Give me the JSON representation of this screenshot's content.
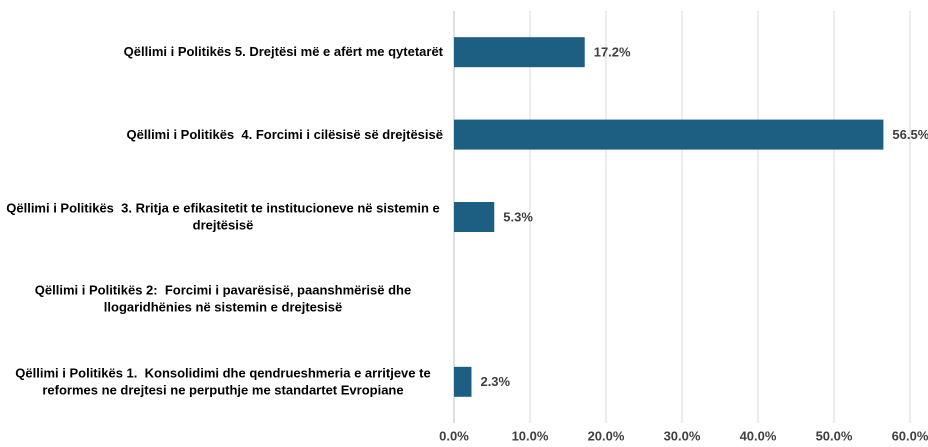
{
  "chart_data": {
    "type": "hbar",
    "categories": [
      "Qëllimi i Politikës 5. Drejtësi më e afërt me qytetarët",
      "Qëllimi i Politikës  4. Forcimi i cilësisë së drejtësisë",
      "Qëllimi i Politikës  3. Rritja e efikasitetit te institucioneve në sistemin e drejtësisë",
      "Qëllimi i Politikës 2:  Forcimi i pavarësisë, paanshmërisë dhe llogaridhënies në sistemin e drejtesisë",
      "Qëllimi i Politikës 1.  Konsolidimi dhe qendrueshmeria e arritjeve te reformes ne drejtesi ne perputhje me standartet Evropiane"
    ],
    "values": [
      17.2,
      56.5,
      5.3,
      null,
      2.3
    ],
    "value_labels": [
      "17.2%",
      "56.5%",
      "5.3%",
      null,
      "2.3%"
    ],
    "color": "#1d5f82",
    "xlim": [
      0,
      60
    ],
    "xticks": [
      {
        "value": 0,
        "label": "0.0%"
      },
      {
        "value": 10,
        "label": "10.0%"
      },
      {
        "value": 20,
        "label": "20.0%"
      },
      {
        "value": 30,
        "label": "30.0%"
      },
      {
        "value": 40,
        "label": "40.0%"
      },
      {
        "value": 50,
        "label": "50.0%"
      },
      {
        "value": 60,
        "label": "60.0%"
      }
    ],
    "grid": true
  }
}
